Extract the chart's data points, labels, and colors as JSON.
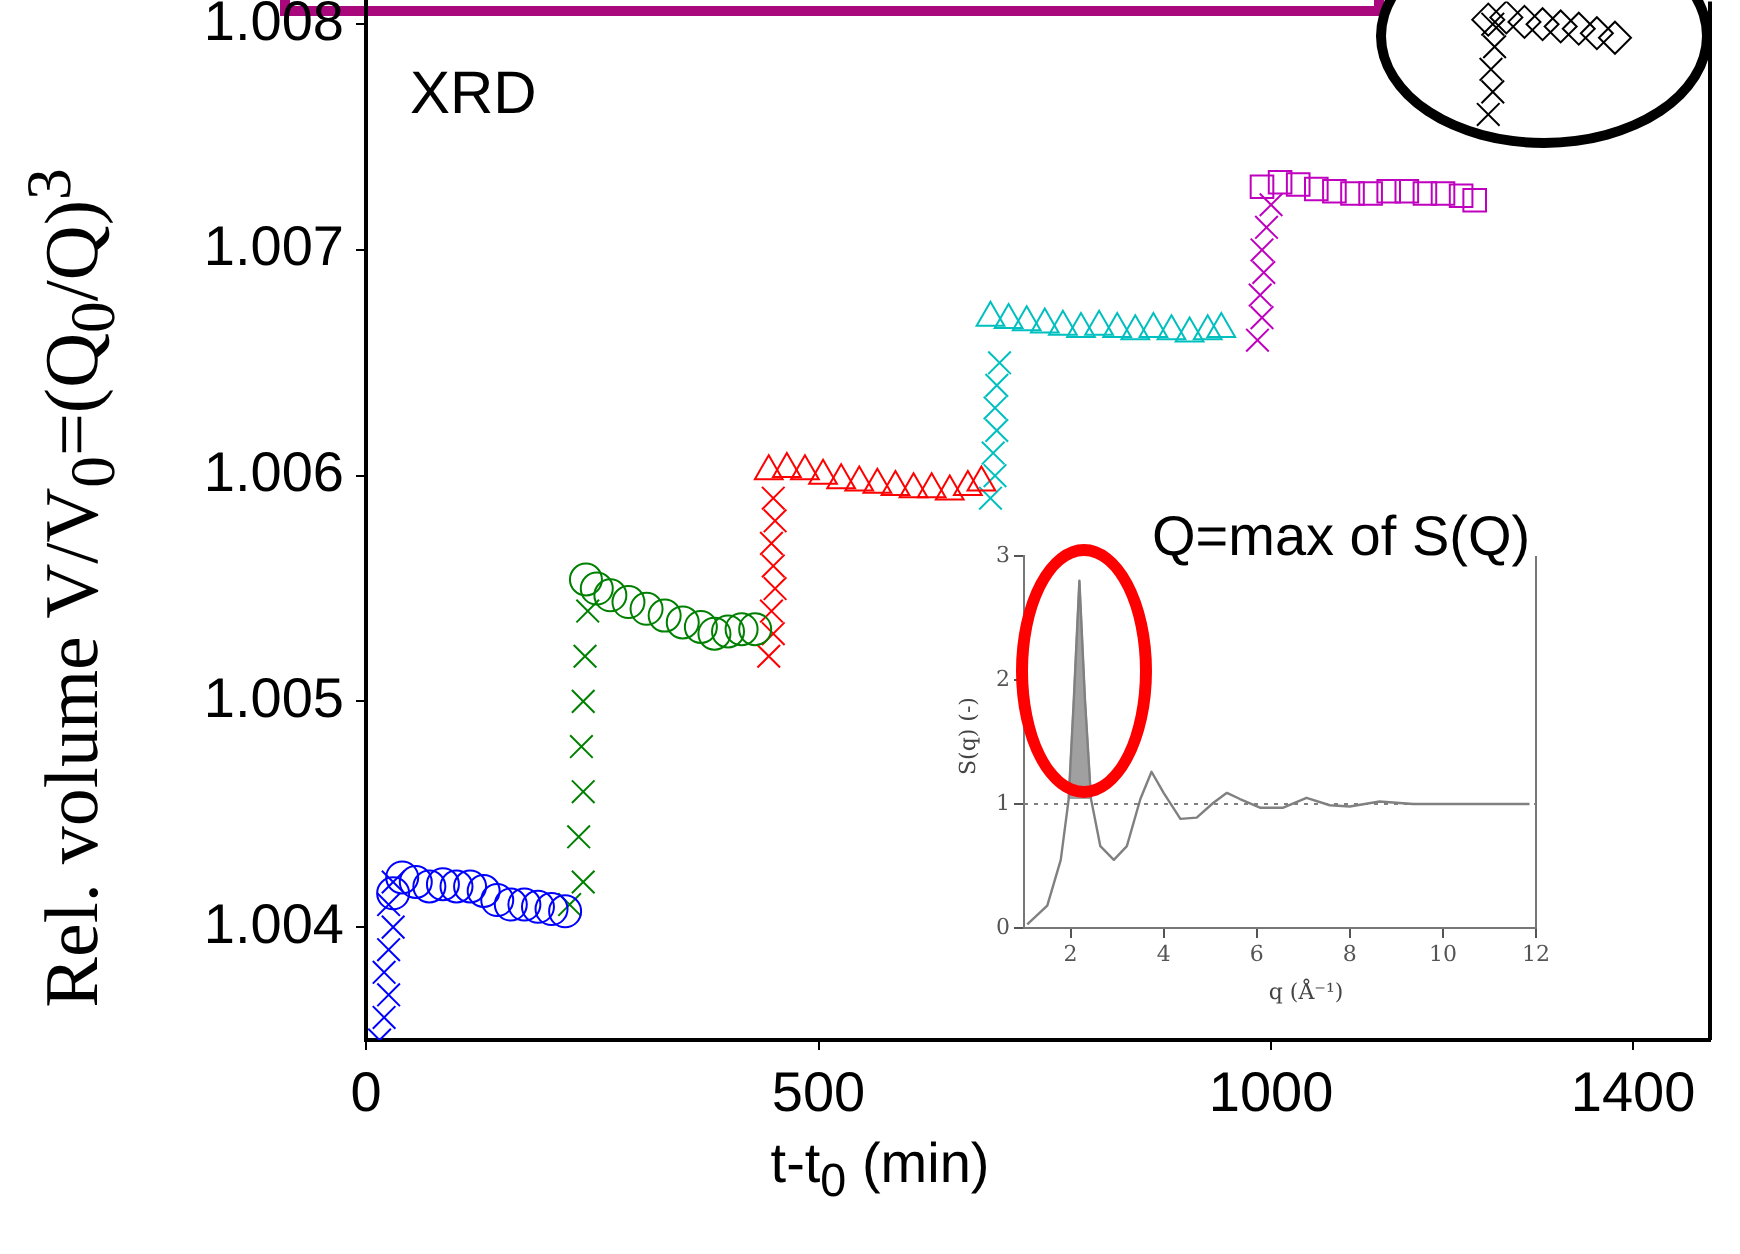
{
  "chart_data": [
    {
      "type": "scatter",
      "xlabel": "t-t$_{0}$ (min)",
      "ylabel": "Rel. volume  V/V$_{0}$=(Q$_{0}$/Q)$^{3}$",
      "annotations": [
        "XRD"
      ],
      "xlim": [
        0,
        1485
      ],
      "ylim": [
        1.0035,
        1.0081
      ],
      "xticks": [
        0,
        500,
        1000,
        1400
      ],
      "yticks": [
        1.004,
        1.005,
        1.006,
        1.007,
        1.008
      ],
      "grid": false,
      "legend": false,
      "series": [
        {
          "color": "#0000ff",
          "marker": "cross",
          "x": [
            15,
            20,
            25,
            20,
            25,
            30,
            25,
            30
          ],
          "values": [
            1.0035,
            1.0036,
            1.0037,
            1.0038,
            1.0039,
            1.004,
            1.0041,
            1.0042
          ]
        },
        {
          "color": "#0000ff",
          "marker": "circle",
          "x": [
            30,
            40,
            55,
            70,
            85,
            100,
            115,
            130,
            145,
            160,
            175,
            190,
            205,
            220
          ],
          "values": [
            1.00415,
            1.00422,
            1.0042,
            1.00418,
            1.00419,
            1.00418,
            1.00418,
            1.00416,
            1.00412,
            1.0041,
            1.0041,
            1.00409,
            1.00408,
            1.00407
          ]
        },
        {
          "color": "#008000",
          "marker": "cross",
          "x": [
            225,
            240,
            235,
            240,
            238,
            240,
            242,
            245
          ],
          "values": [
            1.0041,
            1.0042,
            1.0044,
            1.0046,
            1.0048,
            1.005,
            1.0052,
            1.0054
          ]
        },
        {
          "color": "#008000",
          "marker": "circle",
          "x": [
            243,
            255,
            270,
            290,
            310,
            330,
            350,
            370,
            385,
            400,
            415,
            430
          ],
          "values": [
            1.00554,
            1.0055,
            1.00547,
            1.00544,
            1.00541,
            1.00538,
            1.00535,
            1.00533,
            1.0053,
            1.00531,
            1.00532,
            1.00532
          ]
        },
        {
          "color": "#ff0000",
          "marker": "cross",
          "x": [
            445,
            450,
            448,
            452,
            450,
            448,
            452,
            450
          ],
          "values": [
            1.0052,
            1.0053,
            1.0054,
            1.0055,
            1.0056,
            1.0057,
            1.0058,
            1.0059
          ]
        },
        {
          "color": "#ff0000",
          "marker": "triangle",
          "x": [
            445,
            465,
            485,
            505,
            525,
            545,
            565,
            585,
            605,
            625,
            645,
            665,
            680
          ],
          "values": [
            1.00602,
            1.00603,
            1.00602,
            1.006,
            1.00598,
            1.00597,
            1.00596,
            1.00595,
            1.00594,
            1.00594,
            1.00593,
            1.00595,
            1.00597
          ]
        },
        {
          "color": "#00bfbf",
          "marker": "cross",
          "x": [
            690,
            695,
            693,
            697,
            695,
            697,
            700
          ],
          "values": [
            1.0059,
            1.006,
            1.0061,
            1.0062,
            1.0063,
            1.0064,
            1.0065
          ]
        },
        {
          "color": "#00bfbf",
          "marker": "triangle",
          "x": [
            690,
            710,
            730,
            750,
            770,
            790,
            810,
            830,
            850,
            870,
            890,
            910,
            930,
            945
          ],
          "values": [
            1.0067,
            1.00669,
            1.00668,
            1.00667,
            1.00666,
            1.00665,
            1.00666,
            1.00665,
            1.00664,
            1.00665,
            1.00664,
            1.00663,
            1.00664,
            1.00665
          ]
        },
        {
          "color": "#bf00bf",
          "marker": "cross",
          "x": [
            985,
            990,
            988,
            992,
            990,
            995,
            1000
          ],
          "values": [
            1.0066,
            1.0067,
            1.0068,
            1.0069,
            1.007,
            1.0071,
            1.0072
          ]
        },
        {
          "color": "#bf00bf",
          "marker": "square",
          "x": [
            990,
            1010,
            1030,
            1050,
            1070,
            1090,
            1110,
            1130,
            1150,
            1170,
            1190,
            1210,
            1225
          ],
          "values": [
            1.00728,
            1.0073,
            1.00729,
            1.00727,
            1.00726,
            1.00725,
            1.00725,
            1.00726,
            1.00726,
            1.00725,
            1.00725,
            1.00724,
            1.00722
          ]
        },
        {
          "color": "#000000",
          "marker": "cross",
          "x": [
            1240,
            1245,
            1243,
            1247,
            1245
          ],
          "values": [
            1.0076,
            1.0077,
            1.0078,
            1.0079,
            1.008
          ]
        },
        {
          "color": "#000000",
          "marker": "diamond",
          "x": [
            1240,
            1260,
            1280,
            1300,
            1320,
            1340,
            1360,
            1380
          ],
          "values": [
            1.00802,
            1.00803,
            1.00801,
            1.008,
            1.00799,
            1.00798,
            1.00796,
            1.00794
          ]
        }
      ]
    },
    {
      "type": "line",
      "xlabel": "q (Å⁻¹)",
      "ylabel": "S(q) (-)",
      "annotations": [
        "Q=max of S(Q)"
      ],
      "xlim": [
        1,
        12
      ],
      "ylim": [
        0,
        3
      ],
      "xticks": [
        2,
        4,
        6,
        8,
        10,
        12
      ],
      "yticks": [
        0,
        1,
        2,
        3
      ],
      "grid": false,
      "legend": false,
      "marker": "none",
      "ref_lines": [
        {
          "axis": "y",
          "value": 1,
          "line_style": "dotted",
          "color": "#808080"
        }
      ],
      "series": [
        {
          "type": "line",
          "color": "#808080",
          "x": [
            1.07,
            1.5,
            1.79,
            1.96,
            2.07,
            2.19,
            2.31,
            2.44,
            2.64,
            2.93,
            3.21,
            3.5,
            3.74,
            4.0,
            4.36,
            4.71,
            5.07,
            5.36,
            5.64,
            6.07,
            6.57,
            7.07,
            7.57,
            8.0,
            8.64,
            9.36,
            10.2,
            11.86
          ],
          "values": [
            0.03,
            0.18,
            0.55,
            1.04,
            1.84,
            2.8,
            1.84,
            1.04,
            0.66,
            0.55,
            0.66,
            1.04,
            1.26,
            1.09,
            0.88,
            0.89,
            1.01,
            1.09,
            1.04,
            0.97,
            0.97,
            1.05,
            0.99,
            0.98,
            1.02,
            1.0,
            1.0,
            1.0
          ]
        },
        {
          "type": "area",
          "color": "#a0a0a0",
          "x": [
            1.96,
            2.07,
            2.19,
            2.31,
            2.44
          ],
          "values": [
            1.04,
            1.84,
            2.8,
            1.84,
            1.04
          ]
        }
      ]
    }
  ]
}
